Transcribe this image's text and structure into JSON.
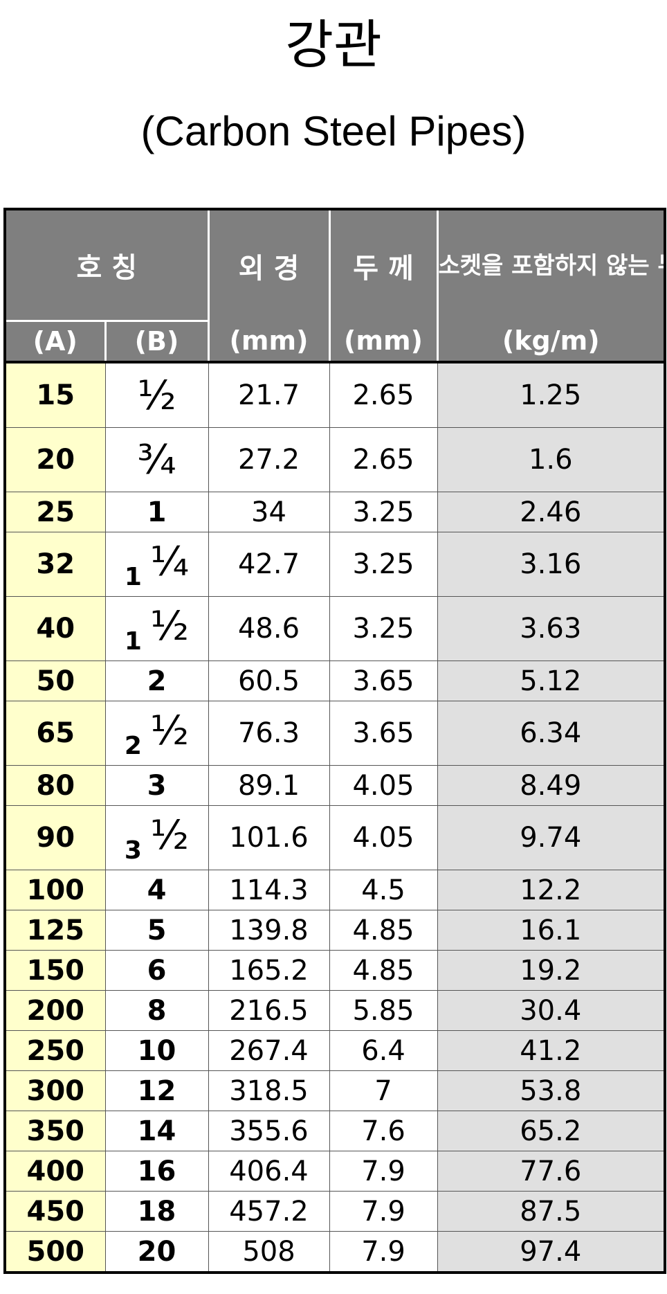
{
  "title": {
    "korean": "강관",
    "english": "(Carbon Steel Pipes)"
  },
  "table": {
    "headers": {
      "nominal": "호  칭",
      "od": "외 경",
      "thickness": "두 께",
      "weight": "소켓을 포함하지 않는 무게",
      "unit_a": "(A)",
      "unit_b": "(B)",
      "unit_od": "(mm)",
      "unit_t": "(mm)",
      "unit_w": "(kg/m)"
    },
    "rows": [
      {
        "a": "15",
        "b_whole": "",
        "b_frac": "½",
        "od": "21.7",
        "t": "2.65",
        "w": "1.25"
      },
      {
        "a": "20",
        "b_whole": "",
        "b_frac": "¾",
        "od": "27.2",
        "t": "2.65",
        "w": "1.6"
      },
      {
        "a": "25",
        "b_whole": "1",
        "b_frac": "",
        "od": "34",
        "t": "3.25",
        "w": "2.46"
      },
      {
        "a": "32",
        "b_whole": "1",
        "b_frac": "¼",
        "od": "42.7",
        "t": "3.25",
        "w": "3.16"
      },
      {
        "a": "40",
        "b_whole": "1",
        "b_frac": "½",
        "od": "48.6",
        "t": "3.25",
        "w": "3.63"
      },
      {
        "a": "50",
        "b_whole": "2",
        "b_frac": "",
        "od": "60.5",
        "t": "3.65",
        "w": "5.12"
      },
      {
        "a": "65",
        "b_whole": "2",
        "b_frac": "½",
        "od": "76.3",
        "t": "3.65",
        "w": "6.34"
      },
      {
        "a": "80",
        "b_whole": "3",
        "b_frac": "",
        "od": "89.1",
        "t": "4.05",
        "w": "8.49"
      },
      {
        "a": "90",
        "b_whole": "3",
        "b_frac": "½",
        "od": "101.6",
        "t": "4.05",
        "w": "9.74"
      },
      {
        "a": "100",
        "b_whole": "4",
        "b_frac": "",
        "od": "114.3",
        "t": "4.5",
        "w": "12.2"
      },
      {
        "a": "125",
        "b_whole": "5",
        "b_frac": "",
        "od": "139.8",
        "t": "4.85",
        "w": "16.1"
      },
      {
        "a": "150",
        "b_whole": "6",
        "b_frac": "",
        "od": "165.2",
        "t": "4.85",
        "w": "19.2"
      },
      {
        "a": "200",
        "b_whole": "8",
        "b_frac": "",
        "od": "216.5",
        "t": "5.85",
        "w": "30.4"
      },
      {
        "a": "250",
        "b_whole": "10",
        "b_frac": "",
        "od": "267.4",
        "t": "6.4",
        "w": "41.2"
      },
      {
        "a": "300",
        "b_whole": "12",
        "b_frac": "",
        "od": "318.5",
        "t": "7",
        "w": "53.8"
      },
      {
        "a": "350",
        "b_whole": "14",
        "b_frac": "",
        "od": "355.6",
        "t": "7.6",
        "w": "65.2"
      },
      {
        "a": "400",
        "b_whole": "16",
        "b_frac": "",
        "od": "406.4",
        "t": "7.9",
        "w": "77.6"
      },
      {
        "a": "450",
        "b_whole": "18",
        "b_frac": "",
        "od": "457.2",
        "t": "7.9",
        "w": "87.5"
      },
      {
        "a": "500",
        "b_whole": "20",
        "b_frac": "",
        "od": "508",
        "t": "7.9",
        "w": "97.4"
      }
    ]
  }
}
